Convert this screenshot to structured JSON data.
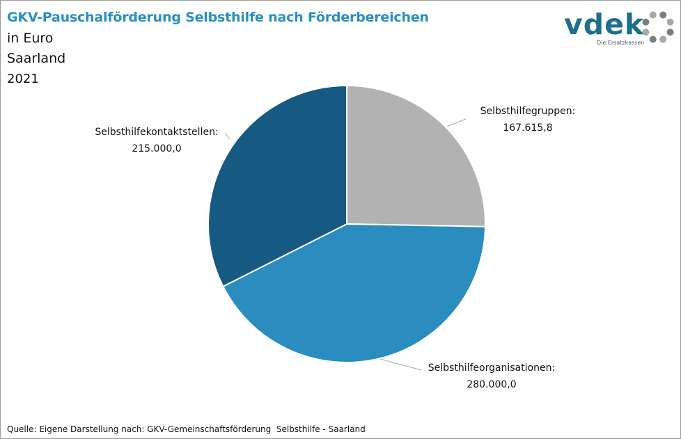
{
  "header": {
    "title": "GKV-Pauschalförderung Selbsthilfe nach Förderbereichen",
    "subtitle_unit": "in Euro",
    "subtitle_region": "Saarland",
    "subtitle_year": "2021"
  },
  "logo": {
    "wordmark": "vdek",
    "tagline": "Die Ersatzkassen",
    "color": "#1e6f8c",
    "icon": "dotted-ring-icon"
  },
  "chart_data": {
    "type": "pie",
    "title": "GKV-Pauschalförderung Selbsthilfe nach Förderbereichen",
    "unit": "Euro",
    "start_angle": "12 o'clock, clockwise",
    "slices": [
      {
        "label": "Selbsthilfegruppen:",
        "value": 167615.8,
        "value_text": "167.615,8",
        "color": "#b2b2b2"
      },
      {
        "label": "Selbsthilfeorganisationen:",
        "value": 280000.0,
        "value_text": "280.000,0",
        "color": "#2a8cbf"
      },
      {
        "label": "Selbsthilfekontaktstellen:",
        "value": 215000.0,
        "value_text": "215.000,0",
        "color": "#165a84"
      }
    ]
  },
  "footer": {
    "source": "Quelle: Eigene Darstellung nach: GKV-Gemeinschaftsförderung  Selbsthilfe - Saarland"
  }
}
